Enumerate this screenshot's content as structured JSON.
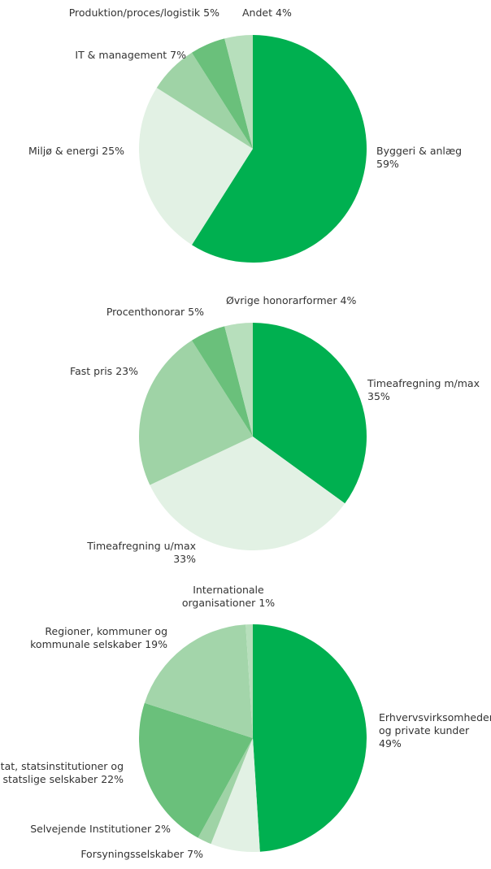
{
  "chart_data": [
    {
      "type": "pie",
      "categories": [
        "Byggeri & anlæg",
        "Miljø & energi",
        "IT & management",
        "Produktion/proces/logistik",
        "Andet"
      ],
      "values": [
        59,
        25,
        7,
        5,
        4
      ],
      "value_labels": [
        "59%",
        "25%",
        "7%",
        "5%",
        "4%"
      ],
      "colors": [
        "#00b050",
        "#e2f1e4",
        "#9fd3a6",
        "#6ac07b",
        "#b7dfbc"
      ]
    },
    {
      "type": "pie",
      "categories": [
        "Timeafregning m/max",
        "Timeafregning u/max",
        "Fast pris",
        "Procenthonorar",
        "Øvrige honorarformer"
      ],
      "values": [
        35,
        33,
        23,
        5,
        4
      ],
      "value_labels": [
        "35%",
        "33%",
        "23%",
        "5%",
        "4%"
      ],
      "colors": [
        "#00b050",
        "#e2f1e4",
        "#9fd3a6",
        "#6ac07b",
        "#b7dfbc"
      ]
    },
    {
      "type": "pie",
      "categories": [
        "Erhvervsvirksomheder og private kunder",
        "Forsyningsselskaber",
        "Selvejende Institutioner",
        "Stat, statsinstitutioner og statslige selskaber",
        "Regioner, kommuner og kommunale selskaber",
        "Internationale organisationer"
      ],
      "values": [
        49,
        7,
        2,
        22,
        19,
        1
      ],
      "value_labels": [
        "49%",
        "7%",
        "2%",
        "22%",
        "19%",
        "1%"
      ],
      "colors": [
        "#00b050",
        "#e2f1e4",
        "#9fd3a6",
        "#6ac07b",
        "#a3d5aa",
        "#b7dfbc"
      ]
    }
  ]
}
